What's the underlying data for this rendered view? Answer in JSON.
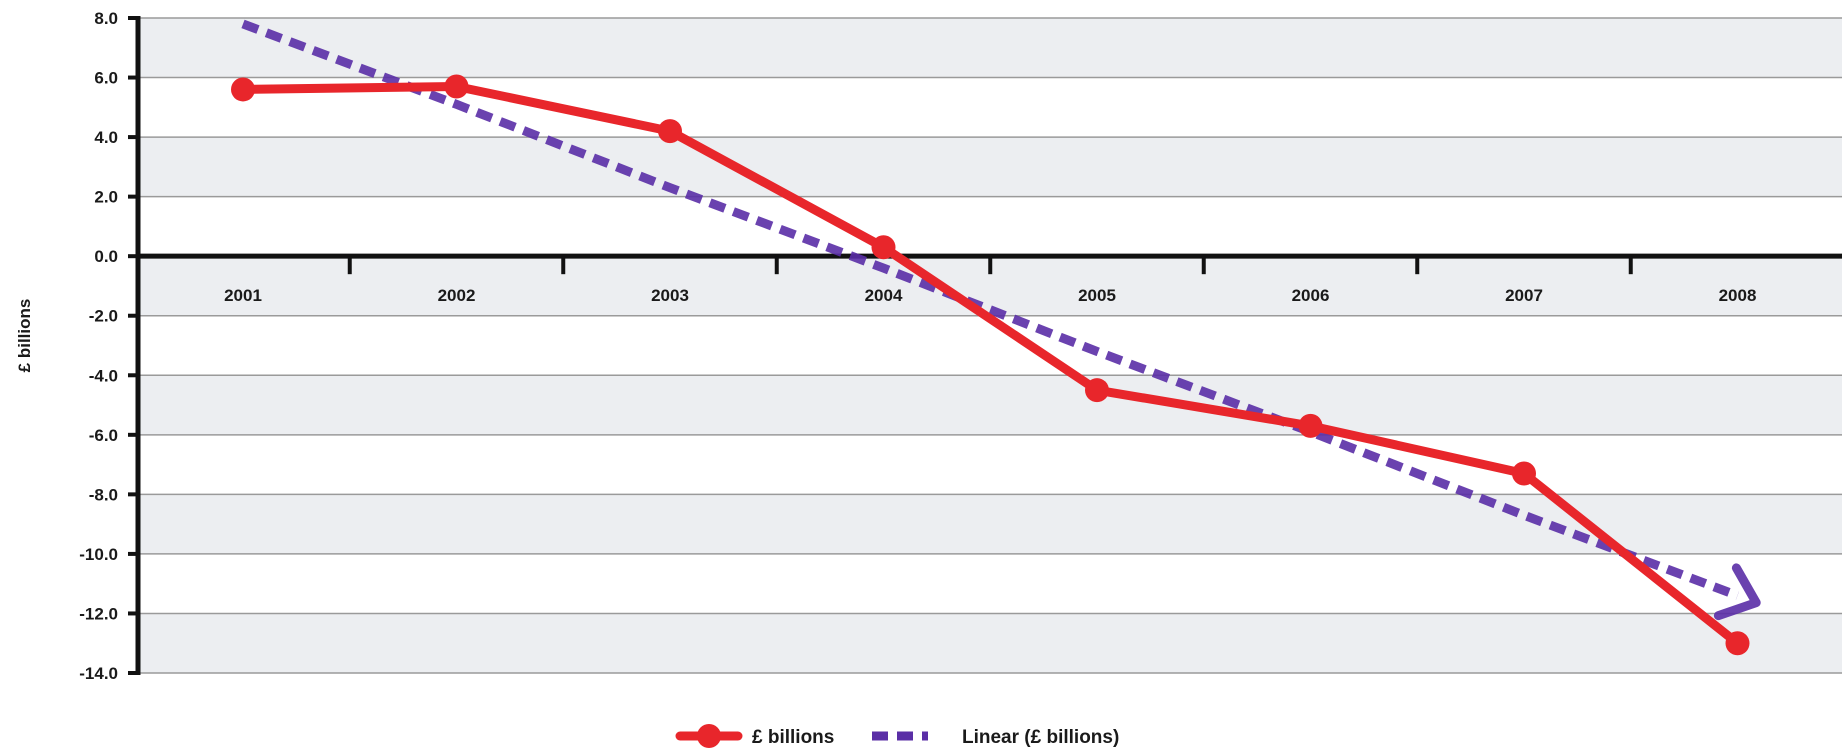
{
  "chart_data": {
    "type": "line",
    "title": "",
    "xlabel": "",
    "ylabel": "£ billions",
    "categories": [
      "2001",
      "2002",
      "2003",
      "2004",
      "2005",
      "2006",
      "2007",
      "2008"
    ],
    "series": [
      {
        "name": "£ billions",
        "values": [
          5.6,
          5.7,
          4.2,
          0.3,
          -4.5,
          -5.7,
          -7.3,
          -13.0
        ],
        "color": "#e8262b",
        "style": "solid",
        "markers": true
      },
      {
        "name": "Linear (£ billions)",
        "values": [
          7.8,
          5.1,
          2.3,
          -0.4,
          -3.2,
          -5.9,
          -8.7,
          -11.4
        ],
        "color": "#5a2ea6",
        "style": "dashed",
        "markers": false
      }
    ],
    "ylim": [
      -14.0,
      8.0
    ],
    "yticks": [
      "8.0",
      "6.0",
      "4.0",
      "2.0",
      "0.0",
      "-2.0",
      "-4.0",
      "-6.0",
      "-8.0",
      "-10.0",
      "-12.0",
      "-14.0"
    ],
    "grid": true,
    "legend_position": "bottom-center"
  }
}
